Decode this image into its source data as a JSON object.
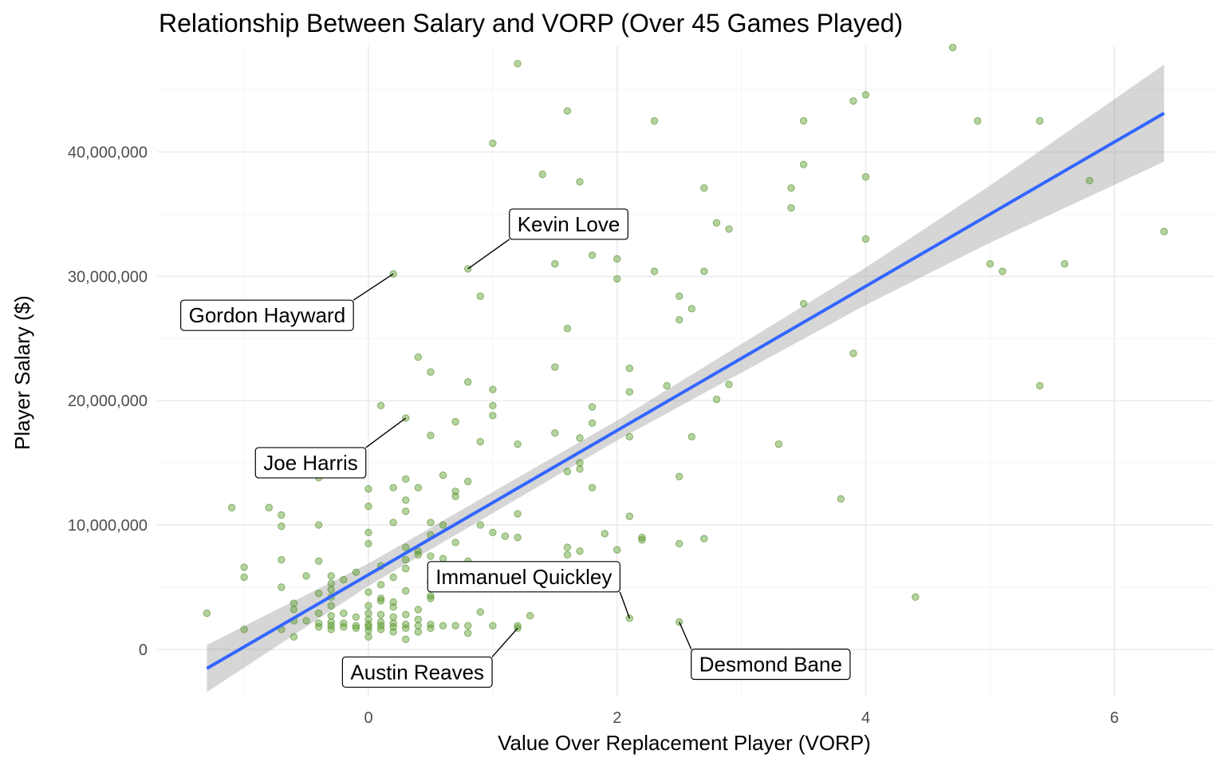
{
  "chart_data": {
    "type": "scatter",
    "title": "Relationship Between Salary and VORP (Over 45 Games Played)",
    "xlabel": "Value Over Replacement Player (VORP)",
    "ylabel": "Player Salary ($)",
    "xlim": [
      -1.7,
      6.8
    ],
    "ylim": [
      -3800000,
      48500000
    ],
    "x_ticks": [
      0,
      2,
      4,
      6
    ],
    "x_tick_labels": [
      "0",
      "2",
      "4",
      "6"
    ],
    "y_ticks": [
      0,
      10000000,
      20000000,
      30000000,
      40000000
    ],
    "y_tick_labels": [
      "0",
      "10,000,000",
      "20,000,000",
      "30,000,000",
      "40,000,000"
    ],
    "grid": true,
    "legend": "none",
    "point_color": "#5a9e2a",
    "line_color": "#3366ff",
    "band_color": "#999999",
    "fit": {
      "method": "linear",
      "x_range": [
        -1.3,
        6.4
      ],
      "intercept": 6000000,
      "slope": 5800000,
      "ci_at_x": [
        -1.3,
        0,
        2,
        4,
        5,
        6.4
      ],
      "ci_halfwidth": [
        1900000,
        900000,
        800000,
        1500000,
        2300000,
        3900000
      ]
    },
    "annotations": [
      {
        "label": "Kevin Love",
        "x": 0.8,
        "y": 30600000
      },
      {
        "label": "Gordon Hayward",
        "x": 0.2,
        "y": 30200000
      },
      {
        "label": "Joe Harris",
        "x": 0.3,
        "y": 18600000
      },
      {
        "label": "Immanuel Quickley",
        "x": 2.1,
        "y": 2500000
      },
      {
        "label": "Austin Reaves",
        "x": 1.2,
        "y": 1700000
      },
      {
        "label": "Desmond Bane",
        "x": 2.5,
        "y": 2200000
      }
    ],
    "points": [
      [
        4.7,
        48400000
      ],
      [
        1.2,
        47100000
      ],
      [
        4.0,
        44600000
      ],
      [
        3.9,
        44100000
      ],
      [
        1.6,
        43300000
      ],
      [
        2.3,
        42500000
      ],
      [
        3.5,
        42500000
      ],
      [
        4.9,
        42500000
      ],
      [
        5.4,
        42500000
      ],
      [
        1.0,
        40700000
      ],
      [
        3.5,
        39000000
      ],
      [
        1.4,
        38200000
      ],
      [
        4.0,
        38000000
      ],
      [
        1.7,
        37600000
      ],
      [
        5.8,
        37700000
      ],
      [
        2.7,
        37100000
      ],
      [
        3.4,
        37100000
      ],
      [
        3.4,
        35500000
      ],
      [
        1.9,
        35100000
      ],
      [
        2.8,
        34300000
      ],
      [
        2.9,
        33800000
      ],
      [
        6.4,
        33600000
      ],
      [
        1.9,
        33300000
      ],
      [
        4.0,
        33000000
      ],
      [
        1.8,
        31700000
      ],
      [
        2.0,
        31400000
      ],
      [
        5.0,
        31000000
      ],
      [
        5.6,
        31000000
      ],
      [
        1.5,
        31000000
      ],
      [
        0.8,
        30600000
      ],
      [
        2.3,
        30400000
      ],
      [
        2.7,
        30400000
      ],
      [
        5.1,
        30400000
      ],
      [
        0.2,
        30200000
      ],
      [
        2.0,
        29800000
      ],
      [
        0.9,
        28400000
      ],
      [
        2.5,
        28400000
      ],
      [
        3.5,
        27800000
      ],
      [
        2.6,
        27400000
      ],
      [
        2.5,
        26500000
      ],
      [
        1.6,
        25800000
      ],
      [
        0.4,
        23500000
      ],
      [
        3.9,
        23800000
      ],
      [
        1.5,
        22700000
      ],
      [
        2.1,
        22600000
      ],
      [
        0.5,
        22300000
      ],
      [
        0.8,
        21500000
      ],
      [
        2.4,
        21200000
      ],
      [
        2.9,
        21300000
      ],
      [
        5.4,
        21200000
      ],
      [
        1.0,
        20900000
      ],
      [
        2.1,
        20700000
      ],
      [
        2.8,
        20100000
      ],
      [
        0.1,
        19600000
      ],
      [
        1.8,
        19500000
      ],
      [
        1.0,
        19600000
      ],
      [
        1.0,
        18800000
      ],
      [
        0.3,
        18600000
      ],
      [
        0.7,
        18300000
      ],
      [
        1.8,
        18200000
      ],
      [
        1.5,
        17400000
      ],
      [
        0.5,
        17200000
      ],
      [
        1.7,
        17000000
      ],
      [
        2.1,
        17100000
      ],
      [
        2.6,
        17100000
      ],
      [
        0.9,
        16700000
      ],
      [
        1.2,
        16500000
      ],
      [
        3.3,
        16500000
      ],
      [
        -0.6,
        15300000
      ],
      [
        -0.2,
        15000000
      ],
      [
        1.7,
        15000000
      ],
      [
        1.6,
        14300000
      ],
      [
        1.7,
        14500000
      ],
      [
        0.6,
        14000000
      ],
      [
        2.5,
        13900000
      ],
      [
        -0.4,
        13800000
      ],
      [
        0.3,
        13700000
      ],
      [
        0.8,
        13500000
      ],
      [
        0.2,
        13000000
      ],
      [
        0.4,
        13000000
      ],
      [
        0.0,
        12900000
      ],
      [
        1.8,
        13000000
      ],
      [
        0.7,
        12700000
      ],
      [
        0.7,
        12300000
      ],
      [
        3.8,
        12100000
      ],
      [
        0.3,
        12000000
      ],
      [
        -1.1,
        11400000
      ],
      [
        -0.8,
        11400000
      ],
      [
        0.0,
        11500000
      ],
      [
        0.3,
        11100000
      ],
      [
        1.2,
        10900000
      ],
      [
        -0.7,
        10800000
      ],
      [
        2.1,
        10700000
      ],
      [
        0.2,
        10200000
      ],
      [
        0.5,
        10200000
      ],
      [
        0.6,
        10000000
      ],
      [
        -0.4,
        10000000
      ],
      [
        0.9,
        10000000
      ],
      [
        -0.7,
        9900000
      ],
      [
        0.0,
        9400000
      ],
      [
        0.5,
        9200000
      ],
      [
        1.0,
        9400000
      ],
      [
        1.1,
        9100000
      ],
      [
        1.2,
        9000000
      ],
      [
        1.9,
        9300000
      ],
      [
        2.2,
        9000000
      ],
      [
        2.2,
        8800000
      ],
      [
        2.7,
        8900000
      ],
      [
        0.7,
        8600000
      ],
      [
        0.0,
        8500000
      ],
      [
        2.5,
        8500000
      ],
      [
        0.3,
        8200000
      ],
      [
        1.6,
        8200000
      ],
      [
        2.0,
        8000000
      ],
      [
        1.7,
        7900000
      ],
      [
        0.4,
        7900000
      ],
      [
        0.4,
        7600000
      ],
      [
        1.6,
        7600000
      ],
      [
        0.5,
        7500000
      ],
      [
        0.6,
        7300000
      ],
      [
        -0.7,
        7200000
      ],
      [
        0.3,
        7200000
      ],
      [
        -0.4,
        7100000
      ],
      [
        0.8,
        7100000
      ],
      [
        0.1,
        6700000
      ],
      [
        -1.0,
        6600000
      ],
      [
        0.3,
        6500000
      ],
      [
        0.9,
        6500000
      ],
      [
        1.3,
        6300000
      ],
      [
        1.9,
        6200000
      ],
      [
        -0.1,
        6200000
      ],
      [
        -0.5,
        5900000
      ],
      [
        -0.3,
        5900000
      ],
      [
        -1.0,
        5800000
      ],
      [
        0.7,
        5900000
      ],
      [
        0.2,
        5800000
      ],
      [
        1.6,
        5700000
      ],
      [
        -0.2,
        5600000
      ],
      [
        0.5,
        5400000
      ],
      [
        -0.3,
        5300000
      ],
      [
        0.1,
        5200000
      ],
      [
        0.6,
        5100000
      ],
      [
        -0.7,
        5000000
      ],
      [
        0.7,
        5000000
      ],
      [
        -0.3,
        4800000
      ],
      [
        0.3,
        4700000
      ],
      [
        0.0,
        4600000
      ],
      [
        -0.4,
        4500000
      ],
      [
        0.5,
        4300000
      ],
      [
        -0.3,
        4200000
      ],
      [
        0.5,
        4100000
      ],
      [
        0.1,
        4100000
      ],
      [
        4.4,
        4200000
      ],
      [
        0.1,
        3900000
      ],
      [
        0.2,
        3800000
      ],
      [
        -0.6,
        3700000
      ],
      [
        -0.3,
        3500000
      ],
      [
        0.0,
        3500000
      ],
      [
        0.2,
        3400000
      ],
      [
        -0.6,
        3200000
      ],
      [
        0.4,
        3200000
      ],
      [
        0.9,
        3000000
      ],
      [
        -1.3,
        2900000
      ],
      [
        -0.4,
        2900000
      ],
      [
        -0.2,
        2900000
      ],
      [
        0.0,
        2900000
      ],
      [
        0.1,
        2800000
      ],
      [
        0.3,
        2800000
      ],
      [
        1.3,
        2700000
      ],
      [
        -0.3,
        2700000
      ],
      [
        -0.1,
        2600000
      ],
      [
        0.2,
        2600000
      ],
      [
        2.1,
        2500000
      ],
      [
        0.0,
        2400000
      ],
      [
        0.4,
        2400000
      ],
      [
        -0.6,
        2300000
      ],
      [
        -0.5,
        2300000
      ],
      [
        -0.3,
        2200000
      ],
      [
        0.1,
        2200000
      ],
      [
        2.5,
        2200000
      ],
      [
        -0.4,
        2100000
      ],
      [
        -0.2,
        2100000
      ],
      [
        0.2,
        2100000
      ],
      [
        0.5,
        2000000
      ],
      [
        0.3,
        2000000
      ],
      [
        0.0,
        2000000
      ],
      [
        -0.3,
        1900000
      ],
      [
        -0.1,
        1900000
      ],
      [
        0.1,
        1900000
      ],
      [
        0.4,
        1900000
      ],
      [
        0.6,
        1900000
      ],
      [
        0.7,
        1900000
      ],
      [
        0.8,
        1900000
      ],
      [
        1.0,
        1900000
      ],
      [
        1.2,
        1900000
      ],
      [
        -0.2,
        1800000
      ],
      [
        0.0,
        1800000
      ],
      [
        0.2,
        1800000
      ],
      [
        -0.4,
        1800000
      ],
      [
        0.3,
        1700000
      ],
      [
        0.5,
        1700000
      ],
      [
        1.2,
        1700000
      ],
      [
        -0.1,
        1700000
      ],
      [
        -0.7,
        1600000
      ],
      [
        -1.0,
        1600000
      ],
      [
        0.1,
        1600000
      ],
      [
        -0.3,
        1600000
      ],
      [
        0.0,
        1500000
      ],
      [
        0.2,
        1400000
      ],
      [
        0.4,
        1400000
      ],
      [
        0.8,
        1300000
      ],
      [
        -0.6,
        1000000
      ],
      [
        0.0,
        1000000
      ],
      [
        0.3,
        800000
      ]
    ]
  }
}
